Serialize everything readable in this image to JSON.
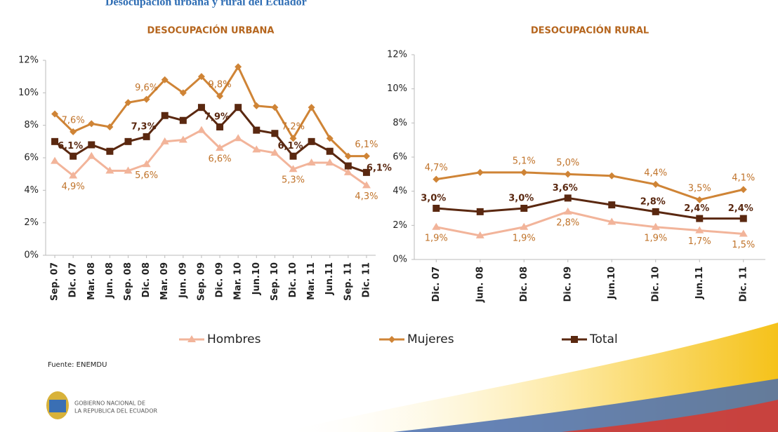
{
  "header": {
    "title": "Desocupación urbana y rural del Ecuador"
  },
  "chart_data": [
    {
      "type": "line",
      "title": "DESOCUPACIÓN URBANA",
      "categories": [
        "Sep. 07",
        "Dic. 07",
        "Mar. 08",
        "Jun. 08",
        "Sep. 08",
        "Dic. 08",
        "Mar. 09",
        "Jun. 09",
        "Sep. 09",
        "Dic. 09",
        "Mar. 10",
        "Jun.10",
        "Sep. 10",
        "Dic. 10",
        "Mar. 11",
        "Jun.11",
        "Sep. 11",
        "Dic. 11"
      ],
      "series": [
        {
          "name": "Hombres",
          "color": "#f2b49a",
          "values": [
            5.8,
            4.9,
            6.1,
            5.2,
            5.2,
            5.6,
            7.0,
            7.1,
            7.7,
            6.6,
            7.2,
            6.5,
            6.3,
            5.3,
            5.7,
            5.7,
            5.1,
            4.3
          ],
          "value_labels": [
            null,
            "4,9%",
            null,
            null,
            null,
            "5,6%",
            null,
            null,
            null,
            "6,6%",
            null,
            null,
            null,
            "5,3%",
            null,
            null,
            null,
            "4,3%"
          ]
        },
        {
          "name": "Mujeres",
          "color": "#cf8436",
          "values": [
            8.7,
            7.6,
            8.1,
            7.9,
            9.4,
            9.6,
            10.8,
            10.0,
            11.0,
            9.8,
            11.6,
            9.2,
            9.1,
            7.2,
            9.1,
            7.2,
            6.1,
            6.1
          ],
          "value_labels": [
            null,
            "7,6%",
            null,
            null,
            null,
            "9,6%",
            null,
            null,
            null,
            "9,8%",
            null,
            null,
            null,
            "7,2%",
            null,
            null,
            null,
            "6,1%"
          ]
        },
        {
          "name": "Total",
          "color": "#5a2810",
          "values": [
            7.0,
            6.1,
            6.8,
            6.4,
            7.0,
            7.3,
            8.6,
            8.3,
            9.1,
            7.9,
            9.1,
            7.7,
            7.5,
            6.1,
            7.0,
            6.4,
            5.5,
            5.1
          ],
          "value_labels": [
            null,
            "6,1%",
            null,
            null,
            null,
            "7,3%",
            null,
            null,
            null,
            "7,9%",
            null,
            null,
            null,
            "6,1%",
            null,
            null,
            null,
            null
          ]
        }
      ],
      "annotations": [
        "6,1%"
      ],
      "ylim": [
        0,
        12
      ],
      "yticks": [
        {
          "value": 0,
          "label": "0%"
        },
        {
          "value": 2,
          "label": "2%"
        },
        {
          "value": 4,
          "label": "4%"
        },
        {
          "value": 6,
          "label": "6%"
        },
        {
          "value": 8,
          "label": "8%"
        },
        {
          "value": 10,
          "label": "10%"
        },
        {
          "value": 12,
          "label": "12%"
        }
      ]
    },
    {
      "type": "line",
      "title": "DESOCUPACIÓN  RURAL",
      "categories": [
        "Dic. 07",
        "Jun. 08",
        "Dic. 08",
        "Dic. 09",
        "Jun.10",
        "Dic. 10",
        "Jun.11",
        "Dic. 11"
      ],
      "series": [
        {
          "name": "Hombres",
          "color": "#f2b49a",
          "values": [
            1.9,
            1.4,
            1.9,
            2.8,
            2.2,
            1.9,
            1.7,
            1.5
          ],
          "value_labels": [
            "1,9%",
            null,
            "1,9%",
            "2,8%",
            null,
            "1,9%",
            "1,7%",
            "1,5%"
          ]
        },
        {
          "name": "Mujeres",
          "color": "#cf8436",
          "values": [
            4.7,
            5.1,
            5.1,
            5.0,
            4.9,
            4.4,
            3.5,
            4.1
          ],
          "value_labels": [
            "4,7%",
            null,
            "5,1%",
            "5,0%",
            null,
            "4,4%",
            "3,5%",
            "4,1%"
          ]
        },
        {
          "name": "Total",
          "color": "#5a2810",
          "values": [
            3.0,
            2.8,
            3.0,
            3.6,
            3.2,
            2.8,
            2.4,
            2.4
          ],
          "value_labels": [
            "3,0%",
            null,
            "3,0%",
            "3,6%",
            null,
            "2,8%",
            "2,4%",
            "2,4%"
          ]
        }
      ],
      "ylim": [
        0,
        12
      ],
      "yticks": [
        {
          "value": 0,
          "label": "0%"
        },
        {
          "value": 2,
          "label": "2%"
        },
        {
          "value": 4,
          "label": "4%"
        },
        {
          "value": 6,
          "label": "6%"
        },
        {
          "value": 8,
          "label": "8%"
        },
        {
          "value": 10,
          "label": "10%"
        },
        {
          "value": 12,
          "label": "12%"
        }
      ]
    }
  ],
  "footer": {
    "source": "Fuente: ENEMDU",
    "logo_lines": [
      "GOBIERNO NACIONAL DE",
      "LA REPUBLICA DEL ECUADOR"
    ]
  }
}
